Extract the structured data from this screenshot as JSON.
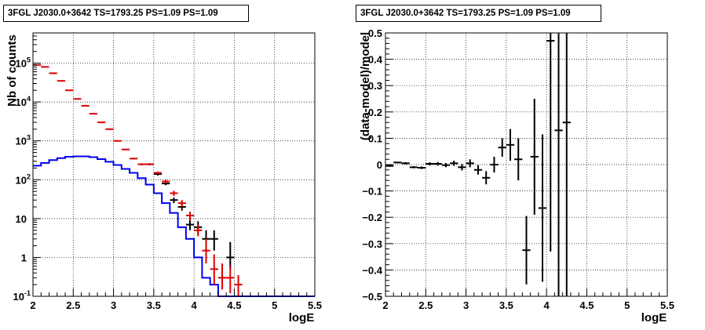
{
  "chart_data": [
    {
      "type": "histogram",
      "title": "3FGL J2030.0+3642 TS=1793.25 PS=1.09 PS=1.09",
      "xlabel": "logE",
      "ylabel": "Nb of counts",
      "xlim": [
        2,
        5.5
      ],
      "ylim": [
        0.1,
        600000
      ],
      "yscale": "log",
      "grid": true,
      "x_ticks": [
        "2",
        "2.5",
        "3",
        "3.5",
        "4",
        "4.5",
        "5",
        "5.5"
      ],
      "y_ticks": [
        {
          "value": 0.1,
          "label": "10",
          "exp": "-1"
        },
        {
          "value": 1,
          "label": "1",
          "exp": ""
        },
        {
          "value": 10,
          "label": "10",
          "exp": ""
        },
        {
          "value": 100,
          "label": "10",
          "exp": "2"
        },
        {
          "value": 1000,
          "label": "10",
          "exp": "3"
        },
        {
          "value": 10000,
          "label": "10",
          "exp": "4"
        },
        {
          "value": 100000,
          "label": "10",
          "exp": "5"
        }
      ],
      "bin_edges": [
        2.0,
        2.1,
        2.2,
        2.3,
        2.4,
        2.5,
        2.6,
        2.7,
        2.8,
        2.9,
        3.0,
        3.1,
        3.2,
        3.3,
        3.4,
        3.5,
        3.6,
        3.7,
        3.8,
        3.9,
        4.0,
        4.1,
        4.2,
        4.3,
        4.4,
        4.5,
        4.6,
        4.7,
        4.8,
        4.9,
        5.0,
        5.1,
        5.2,
        5.3,
        5.4,
        5.5
      ],
      "series": [
        {
          "role": "model",
          "color": "#0000ee",
          "values": [
            230,
            270,
            320,
            360,
            390,
            400,
            400,
            380,
            340,
            290,
            240,
            190,
            150,
            110,
            75,
            45,
            25,
            14,
            6,
            3,
            1,
            0.3,
            0.2,
            0.1,
            0.1,
            0.1,
            0.1,
            0.1,
            0.1,
            0.1,
            0.1,
            0.1,
            0.1,
            0.1,
            0.1
          ]
        },
        {
          "role": "data",
          "color": "#000000",
          "x": [
            3.45,
            3.55,
            3.65,
            3.75,
            3.85,
            3.95,
            4.05,
            4.15,
            4.25,
            4.45
          ],
          "y": [
            250,
            140,
            80,
            30,
            20,
            7,
            6,
            3,
            3,
            1
          ],
          "yerr_lo": [
            235,
            128,
            72,
            25,
            16,
            5,
            4,
            1.5,
            1.5,
            0.5
          ],
          "yerr_hi": [
            265,
            152,
            88,
            35,
            24,
            9.5,
            8.5,
            5,
            5,
            2.5
          ]
        },
        {
          "role": "data",
          "color": "#dd0000",
          "x": [
            2.05,
            2.15,
            2.25,
            2.35,
            2.45,
            2.55,
            2.65,
            2.75,
            2.85,
            2.95,
            3.05,
            3.15,
            3.25,
            3.35,
            3.45,
            3.55,
            3.65,
            3.75,
            3.85,
            3.95,
            4.05,
            4.15,
            4.25,
            4.35,
            4.45,
            4.55
          ],
          "y": [
            90000,
            80000,
            55000,
            35000,
            20000,
            12000,
            8000,
            5000,
            3000,
            2000,
            1000,
            600,
            350,
            250,
            250,
            150,
            90,
            45,
            25,
            12,
            5,
            1.5,
            0.5,
            0.3,
            0.3,
            0.2
          ],
          "yerr_lo": [
            89000,
            79000,
            54500,
            34700,
            19800,
            11900,
            7900,
            4900,
            2950,
            1950,
            970,
            580,
            335,
            235,
            235,
            138,
            80,
            38,
            20,
            9,
            3.5,
            0.7,
            0.2,
            0.15,
            0.12,
            0.1
          ],
          "yerr_hi": [
            91000,
            81000,
            55500,
            35300,
            20200,
            12100,
            8100,
            5100,
            3050,
            2050,
            1030,
            620,
            365,
            265,
            265,
            162,
            100,
            52,
            30,
            15,
            7,
            3,
            1.2,
            0.7,
            0.6,
            0.35
          ]
        }
      ]
    },
    {
      "type": "scatter",
      "title": "3FGL J2030.0+3642 TS=1793.25 PS=1.09 PS=1.09",
      "xlabel": "logE",
      "ylabel": "(data-model)/model",
      "xlim": [
        2,
        5.5
      ],
      "ylim": [
        -0.5,
        0.5
      ],
      "grid": true,
      "x_ticks": [
        "2",
        "2.5",
        "3",
        "3.5",
        "4",
        "4.5",
        "5",
        "5.5"
      ],
      "y_ticks": [
        "-0.5",
        "-0.4",
        "-0.3",
        "-0.2",
        "-0.1",
        "0",
        "0.1",
        "0.2",
        "0.3",
        "0.4",
        "0.5"
      ],
      "x": [
        2.05,
        2.15,
        2.25,
        2.35,
        2.45,
        2.55,
        2.65,
        2.75,
        2.85,
        2.95,
        3.05,
        3.15,
        3.25,
        3.35,
        3.45,
        3.55,
        3.65,
        3.75,
        3.85,
        3.95,
        4.05,
        4.15,
        4.25
      ],
      "y": [
        -0.005,
        0.008,
        0.005,
        -0.01,
        -0.012,
        0.003,
        0.003,
        -0.002,
        0.005,
        -0.01,
        0.005,
        -0.02,
        -0.05,
        0.0,
        0.065,
        0.075,
        0.02,
        -0.325,
        0.03,
        -0.165,
        0.47,
        0.13,
        0.16
      ],
      "yerr": [
        0.003,
        0.003,
        0.004,
        0.004,
        0.005,
        0.006,
        0.007,
        0.008,
        0.01,
        0.012,
        0.015,
        0.018,
        0.025,
        0.03,
        0.035,
        0.06,
        0.08,
        0.13,
        0.22,
        0.28,
        0.8,
        0.9,
        1.1
      ],
      "color": "#000000"
    }
  ]
}
